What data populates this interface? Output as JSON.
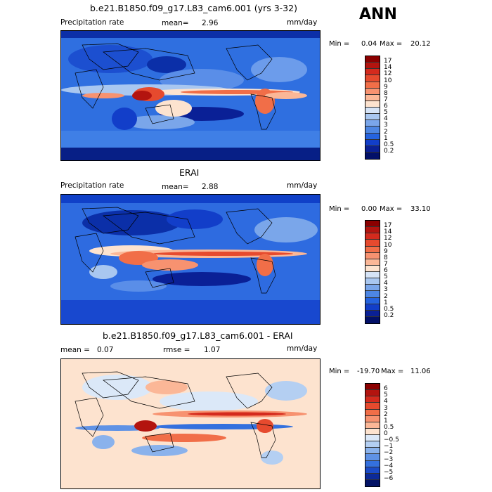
{
  "season_label": "ANN",
  "panels": [
    {
      "title": "b.e21.B1850.f09_g17.L83_cam6.001 (yrs 3-32)",
      "left_label": "Precipitation rate",
      "stat1_label": "mean=",
      "stat1_value": "2.96",
      "stat2_label": "",
      "stat2_value": "",
      "units": "mm/day",
      "min_label": "Min =",
      "min_value": "0.04",
      "max_label": "Max =",
      "max_value": "20.12",
      "colorbar": {
        "labels": [
          "17",
          "14",
          "12",
          "10",
          "9",
          "8",
          "7",
          "6",
          "5",
          "4",
          "3",
          "2",
          "1",
          "0.5",
          "0.2"
        ],
        "colors": [
          "#8b0000",
          "#b3140f",
          "#d42a1d",
          "#e64a2e",
          "#f16e48",
          "#f79270",
          "#fbb797",
          "#fde3cf",
          "#d6e4f7",
          "#a9c7f0",
          "#7aa6ea",
          "#4d86e3",
          "#2563df",
          "#123ec9",
          "#0a2096",
          "#021068"
        ]
      }
    },
    {
      "title": "ERAI",
      "left_label": "Precipitation rate",
      "stat1_label": "mean=",
      "stat1_value": "2.88",
      "stat2_label": "",
      "stat2_value": "",
      "units": "mm/day",
      "min_label": "Min =",
      "min_value": "0.00",
      "max_label": "Max =",
      "max_value": "33.10",
      "colorbar": {
        "labels": [
          "17",
          "14",
          "12",
          "10",
          "9",
          "8",
          "7",
          "6",
          "5",
          "4",
          "3",
          "2",
          "1",
          "0.5",
          "0.2"
        ],
        "colors": [
          "#8b0000",
          "#b3140f",
          "#d42a1d",
          "#e64a2e",
          "#f16e48",
          "#f79270",
          "#fbb797",
          "#fde3cf",
          "#d6e4f7",
          "#a9c7f0",
          "#7aa6ea",
          "#4d86e3",
          "#2563df",
          "#123ec9",
          "#0a2096",
          "#021068"
        ]
      }
    },
    {
      "title": "b.e21.B1850.f09_g17.L83_cam6.001 - ERAI",
      "left_label": "mean =",
      "stat1_label": "",
      "stat1_value": "0.07",
      "stat2_label": "rmse =",
      "stat2_value": "1.07",
      "units": "mm/day",
      "min_label": "Min =",
      "min_value": "-19.70",
      "max_label": "Max =",
      "max_value": "11.06",
      "colorbar": {
        "labels": [
          "6",
          "5",
          "4",
          "3",
          "2",
          "1",
          "0.5",
          "0",
          "−0.5",
          "−1",
          "−2",
          "−3",
          "−4",
          "−5",
          "−6"
        ],
        "colors": [
          "#8b0000",
          "#b3140f",
          "#d42a1d",
          "#e64a2e",
          "#f16e48",
          "#f79270",
          "#fbb797",
          "#fde3cf",
          "#dbe8f8",
          "#b4cff2",
          "#8ab2ec",
          "#5f92e5",
          "#3470de",
          "#1b4bc7",
          "#0c2a98",
          "#031366"
        ]
      }
    }
  ]
}
